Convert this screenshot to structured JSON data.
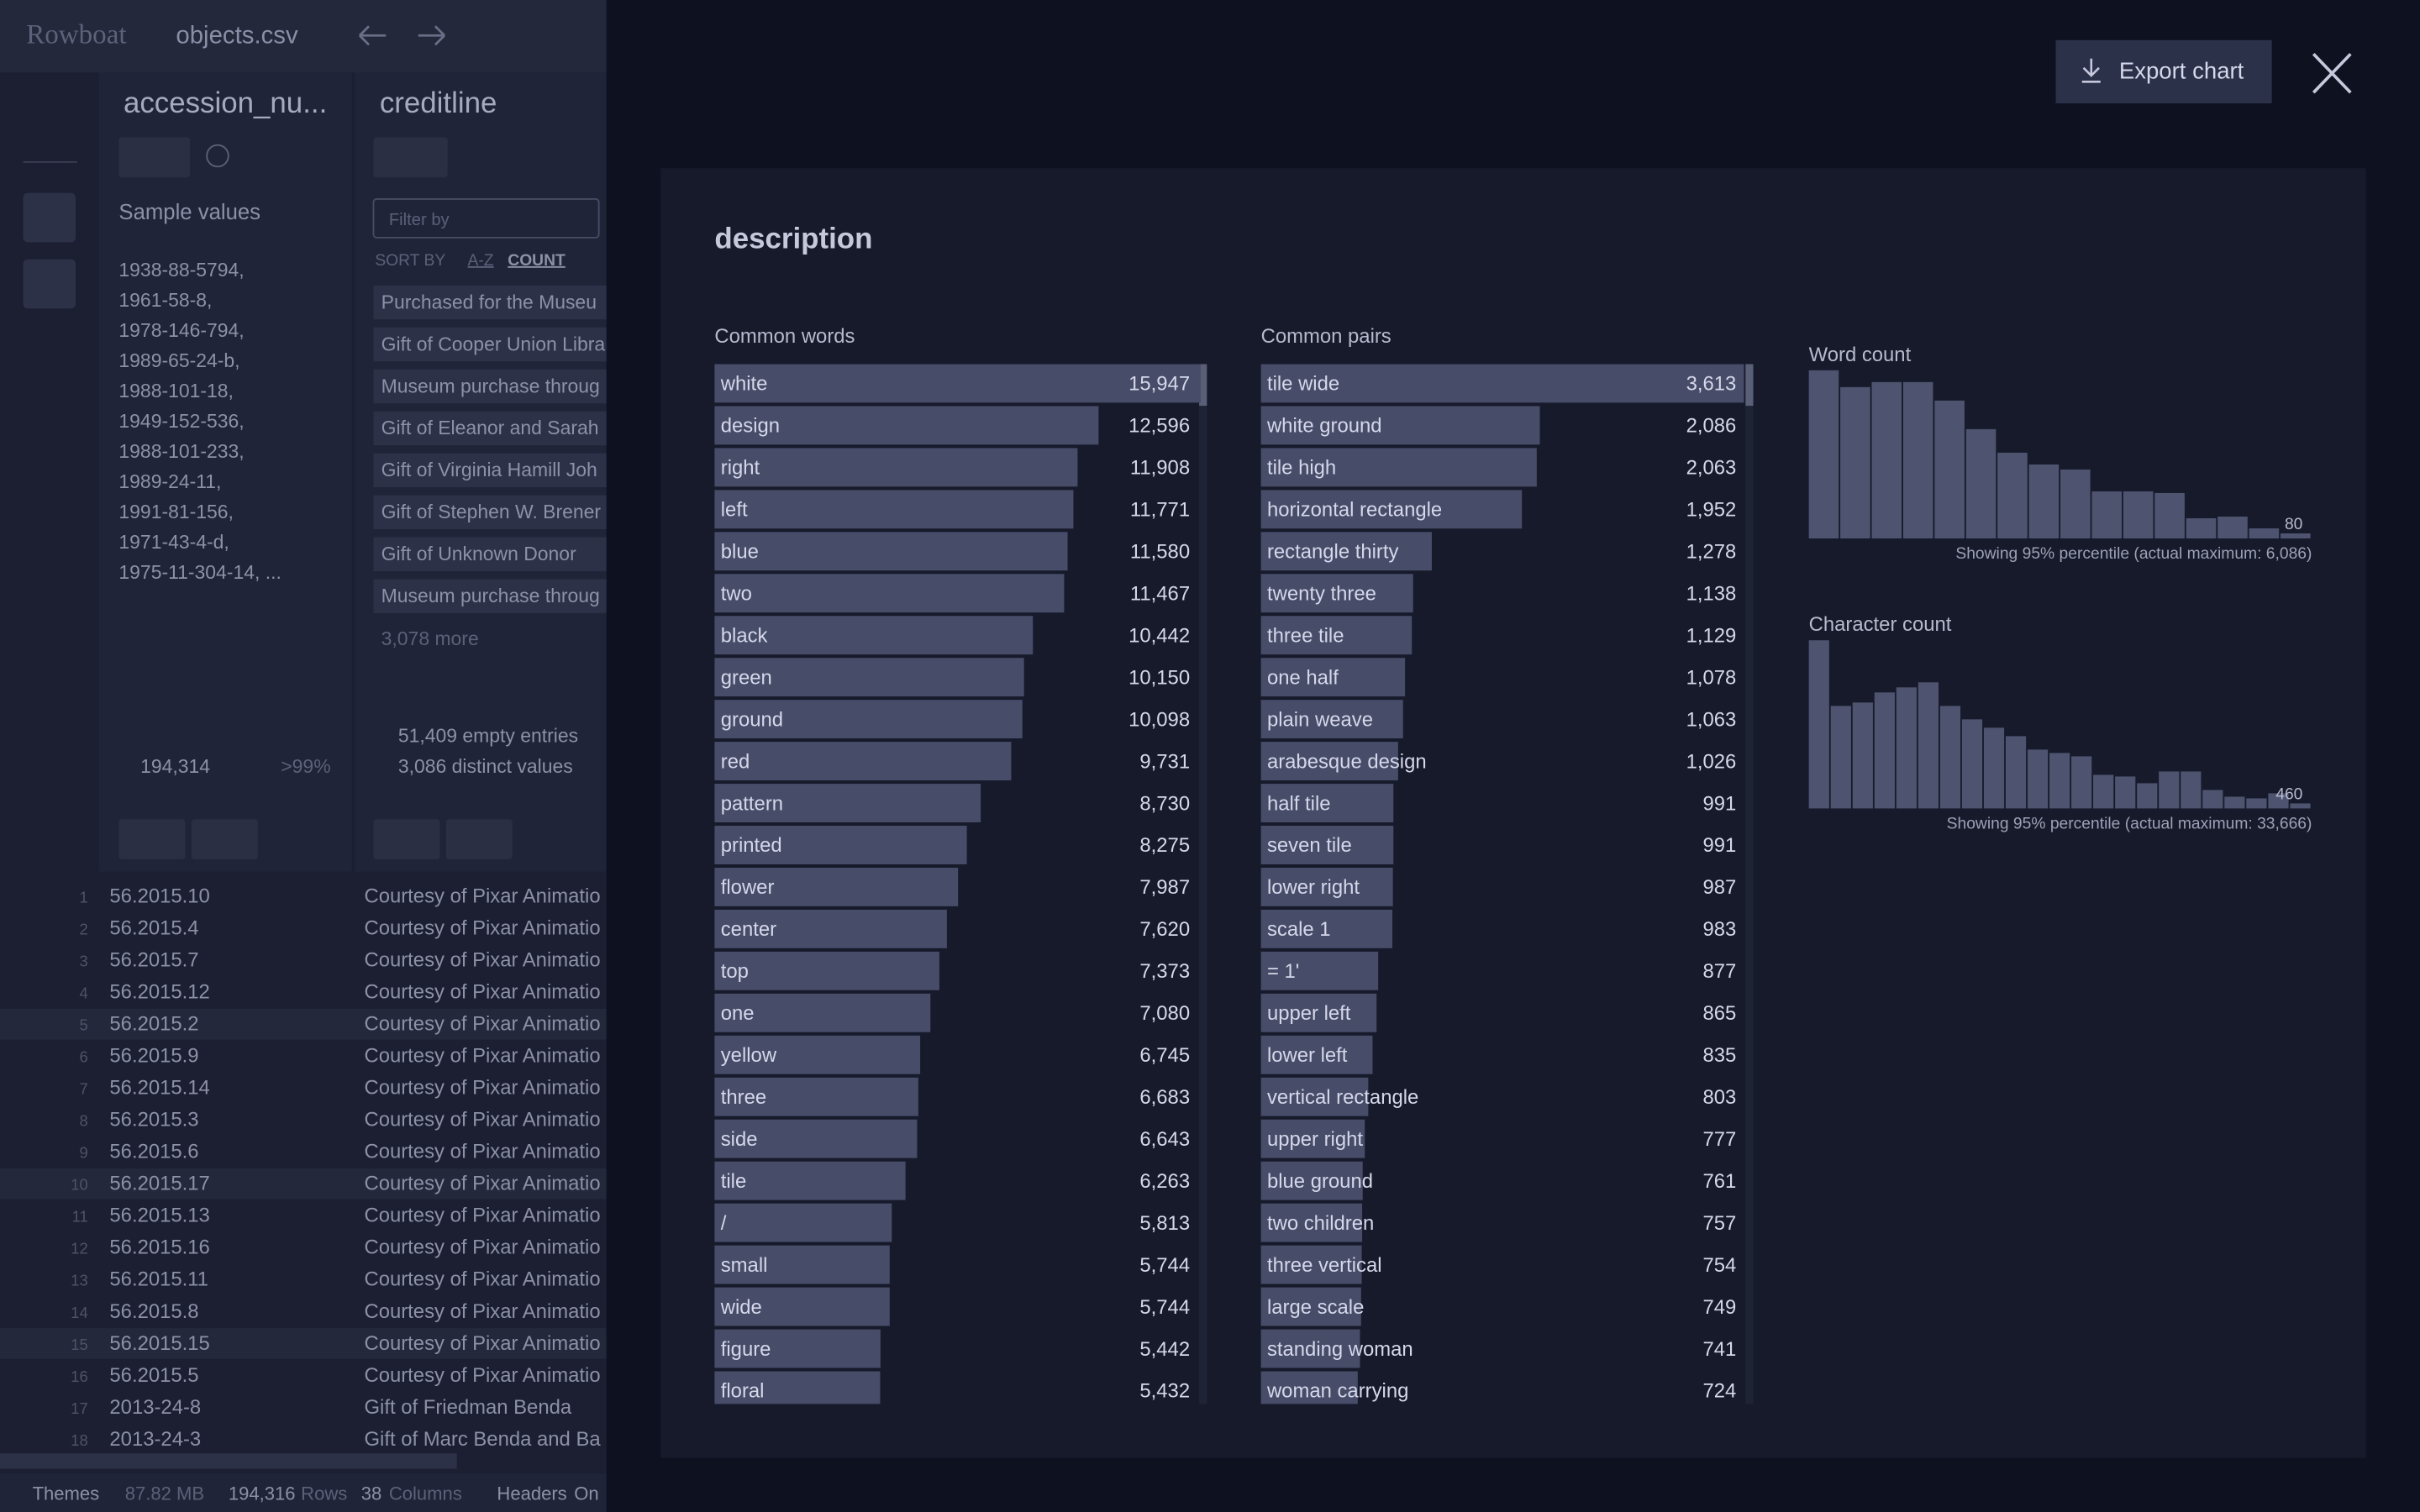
{
  "app": {
    "name": "Rowboat",
    "file": "objects.csv"
  },
  "columns": [
    {
      "title": "accession_nu...",
      "sample_label": "Sample values",
      "samples": [
        "1938-88-5794,",
        "1961-58-8,",
        "1978-146-794,",
        "1989-65-24-b,",
        "1988-101-18,",
        "1949-152-536,",
        "1988-101-233,",
        "1989-24-11,",
        "1991-81-156,",
        "1971-43-4-d,",
        "1975-11-304-14, ..."
      ],
      "distinct": "194,314",
      "share": ">99%"
    },
    {
      "title": "creditline",
      "filter_placeholder": "Filter by",
      "sort_by": "SORT BY",
      "sort_az": "A-Z",
      "sort_count": "COUNT",
      "top_values": [
        "Purchased for the Museu",
        "Gift of Cooper Union Libra",
        "Museum purchase throug",
        "Gift of Eleanor and Sarah",
        "Gift of Virginia Hamill Joh",
        "Gift of Stephen W. Brener",
        "Gift of Unknown Donor",
        "Museum purchase throug"
      ],
      "more": "3,078 more",
      "empty": "51,409 empty entries",
      "distinct": "3,086 distinct values"
    }
  ],
  "rows": [
    [
      1,
      "56.2015.10",
      "Courtesy of Pixar Animatio"
    ],
    [
      2,
      "56.2015.4",
      "Courtesy of Pixar Animatio"
    ],
    [
      3,
      "56.2015.7",
      "Courtesy of Pixar Animatio"
    ],
    [
      4,
      "56.2015.12",
      "Courtesy of Pixar Animatio"
    ],
    [
      5,
      "56.2015.2",
      "Courtesy of Pixar Animatio"
    ],
    [
      6,
      "56.2015.9",
      "Courtesy of Pixar Animatio"
    ],
    [
      7,
      "56.2015.14",
      "Courtesy of Pixar Animatio"
    ],
    [
      8,
      "56.2015.3",
      "Courtesy of Pixar Animatio"
    ],
    [
      9,
      "56.2015.6",
      "Courtesy of Pixar Animatio"
    ],
    [
      10,
      "56.2015.17",
      "Courtesy of Pixar Animatio"
    ],
    [
      11,
      "56.2015.13",
      "Courtesy of Pixar Animatio"
    ],
    [
      12,
      "56.2015.16",
      "Courtesy of Pixar Animatio"
    ],
    [
      13,
      "56.2015.11",
      "Courtesy of Pixar Animatio"
    ],
    [
      14,
      "56.2015.8",
      "Courtesy of Pixar Animatio"
    ],
    [
      15,
      "56.2015.15",
      "Courtesy of Pixar Animatio"
    ],
    [
      16,
      "56.2015.5",
      "Courtesy of Pixar Animatio"
    ],
    [
      17,
      "2013-24-8",
      "Gift of Friedman Benda"
    ],
    [
      18,
      "2013-24-3",
      "Gift of Marc Benda and Ba"
    ]
  ],
  "status": [
    "Themes",
    "87.82 MB",
    "194,316",
    "Rows",
    "38",
    "Columns",
    "Headers",
    "On"
  ],
  "modal": {
    "export": "Export chart",
    "title": "description"
  },
  "chart_data": [
    {
      "type": "hbar",
      "title": "Common words",
      "color": "#474c68",
      "categories": [
        "white",
        "design",
        "right",
        "left",
        "blue",
        "two",
        "black",
        "green",
        "ground",
        "red",
        "pattern",
        "printed",
        "flower",
        "center",
        "top",
        "one",
        "yellow",
        "three",
        "side",
        "tile",
        "/",
        "small",
        "wide",
        "figure",
        "floral"
      ],
      "values": [
        15947,
        12596,
        11908,
        11771,
        11580,
        11467,
        10442,
        10150,
        10098,
        9731,
        8730,
        8275,
        7987,
        7620,
        7373,
        7080,
        6745,
        6683,
        6643,
        6263,
        5813,
        5744,
        5744,
        5442,
        5432
      ],
      "value_labels": [
        "15,947",
        "12,596",
        "11,908",
        "11,771",
        "11,580",
        "11,467",
        "10,442",
        "10,150",
        "10,098",
        "9,731",
        "8,730",
        "8,275",
        "7,987",
        "7,620",
        "7,373",
        "7,080",
        "6,745",
        "6,683",
        "6,643",
        "6,263",
        "5,813",
        "5,744",
        "5,744",
        "5,442",
        "5,432"
      ]
    },
    {
      "type": "hbar",
      "title": "Common pairs",
      "color": "#474c68",
      "categories": [
        "tile wide",
        "white ground",
        "tile high",
        "horizontal rectangle",
        "rectangle thirty",
        "twenty three",
        "three tile",
        "one half",
        "plain weave",
        "arabesque design",
        "half tile",
        "seven tile",
        "lower right",
        "scale 1",
        "= 1'",
        "upper left",
        "lower left",
        "vertical rectangle",
        "upper right",
        "blue ground",
        "two children",
        "three vertical",
        "large scale",
        "standing woman",
        "woman carrying"
      ],
      "values": [
        3613,
        2086,
        2063,
        1952,
        1278,
        1138,
        1129,
        1078,
        1063,
        1026,
        991,
        991,
        987,
        983,
        877,
        865,
        835,
        803,
        777,
        761,
        757,
        754,
        749,
        741,
        724
      ],
      "value_labels": [
        "3,613",
        "2,086",
        "2,063",
        "1,952",
        "1,278",
        "1,138",
        "1,129",
        "1,078",
        "1,063",
        "1,026",
        "991",
        "991",
        "987",
        "983",
        "877",
        "865",
        "835",
        "803",
        "777",
        "761",
        "757",
        "754",
        "749",
        "741",
        "724"
      ]
    },
    {
      "type": "histogram",
      "title": "Word count",
      "color": "#4e536f",
      "bins": [
        0,
        5,
        10,
        15,
        20,
        25,
        30,
        35,
        40,
        45,
        50,
        55,
        60,
        65,
        70,
        75,
        80
      ],
      "values": [
        100,
        90,
        93,
        93,
        82,
        65,
        51,
        44,
        41,
        28,
        28,
        27,
        12,
        13,
        6,
        3
      ],
      "xlim": [
        0,
        80
      ],
      "xticks": [
        80
      ],
      "caption": "Showing 95% percentile (actual maximum: 6,086)"
    },
    {
      "type": "histogram",
      "title": "Character count",
      "color": "#4e536f",
      "bins": [
        0,
        20,
        40,
        60,
        80,
        100,
        120,
        140,
        160,
        180,
        200,
        220,
        240,
        260,
        280,
        300,
        320,
        340,
        360,
        380,
        400,
        420,
        440,
        460
      ],
      "values": [
        100,
        61,
        63,
        69,
        72,
        75,
        61,
        53,
        48,
        43,
        35,
        33,
        31,
        20,
        19,
        15,
        22,
        22,
        11,
        7,
        6,
        9,
        3
      ],
      "xlim": [
        0,
        460
      ],
      "xticks": [
        460
      ],
      "caption": "Showing 95% percentile (actual maximum: 33,666)"
    }
  ]
}
